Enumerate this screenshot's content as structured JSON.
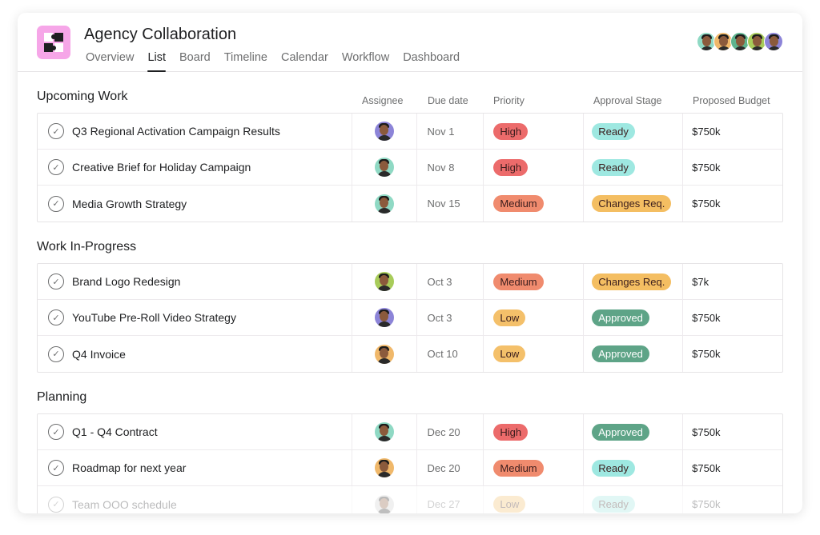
{
  "project": {
    "title": "Agency Collaboration",
    "icon": "puzzle-logo-icon",
    "icon_color": "#f6a6e8"
  },
  "tabs": [
    {
      "label": "Overview"
    },
    {
      "label": "List",
      "active": true
    },
    {
      "label": "Board"
    },
    {
      "label": "Timeline"
    },
    {
      "label": "Calendar"
    },
    {
      "label": "Workflow"
    },
    {
      "label": "Dashboard"
    }
  ],
  "members": [
    {
      "color": "#8fd9c4"
    },
    {
      "color": "#f0b86a"
    },
    {
      "color": "#5fb38e"
    },
    {
      "color": "#a8cc5a"
    },
    {
      "color": "#8c84d8"
    }
  ],
  "columns": {
    "assignee": "Assignee",
    "due": "Due date",
    "priority": "Priority",
    "approval": "Approval Stage",
    "budget": "Proposed Budget"
  },
  "colors": {
    "High": "#ec6b6b",
    "Medium": "#f08b6e",
    "Low": "#f4c06a",
    "Ready": "#9ee8e1",
    "Changes Req.": "#f4be62",
    "Approved": "#5ea487"
  },
  "sections": [
    {
      "title": "Upcoming Work",
      "rows": [
        {
          "name": "Q3 Regional Activation Campaign Results",
          "avatar": "#8c84d8",
          "due": "Nov 1",
          "priority": "High",
          "approval": "Ready",
          "budget": "$750k"
        },
        {
          "name": "Creative Brief for Holiday Campaign",
          "avatar": "#8fd9c4",
          "due": "Nov 8",
          "priority": "High",
          "approval": "Ready",
          "budget": "$750k"
        },
        {
          "name": "Media Growth Strategy",
          "avatar": "#8fd9c4",
          "due": "Nov 15",
          "priority": "Medium",
          "approval": "Changes Req.",
          "budget": "$750k"
        }
      ]
    },
    {
      "title": "Work In-Progress",
      "rows": [
        {
          "name": "Brand Logo Redesign",
          "avatar": "#a8cc5a",
          "due": "Oct 3",
          "priority": "Medium",
          "approval": "Changes Req.",
          "budget": "$7k"
        },
        {
          "name": "YouTube Pre-Roll Video Strategy",
          "avatar": "#8c84d8",
          "due": "Oct 3",
          "priority": "Low",
          "approval": "Approved",
          "budget": "$750k"
        },
        {
          "name": "Q4 Invoice",
          "avatar": "#f0b86a",
          "due": "Oct 10",
          "priority": "Low",
          "approval": "Approved",
          "budget": "$750k"
        }
      ]
    },
    {
      "title": "Planning",
      "rows": [
        {
          "name": "Q1 - Q4 Contract",
          "avatar": "#8fd9c4",
          "due": "Dec 20",
          "priority": "High",
          "approval": "Approved",
          "budget": "$750k"
        },
        {
          "name": "Roadmap for next year",
          "avatar": "#f0b86a",
          "due": "Dec 20",
          "priority": "Medium",
          "approval": "Ready",
          "budget": "$750k"
        },
        {
          "name": "Team OOO schedule",
          "avatar": "#cfcfcf",
          "due": "Dec 27",
          "priority": "Low",
          "approval": "Ready",
          "budget": "$750k",
          "faded": true
        }
      ]
    }
  ]
}
